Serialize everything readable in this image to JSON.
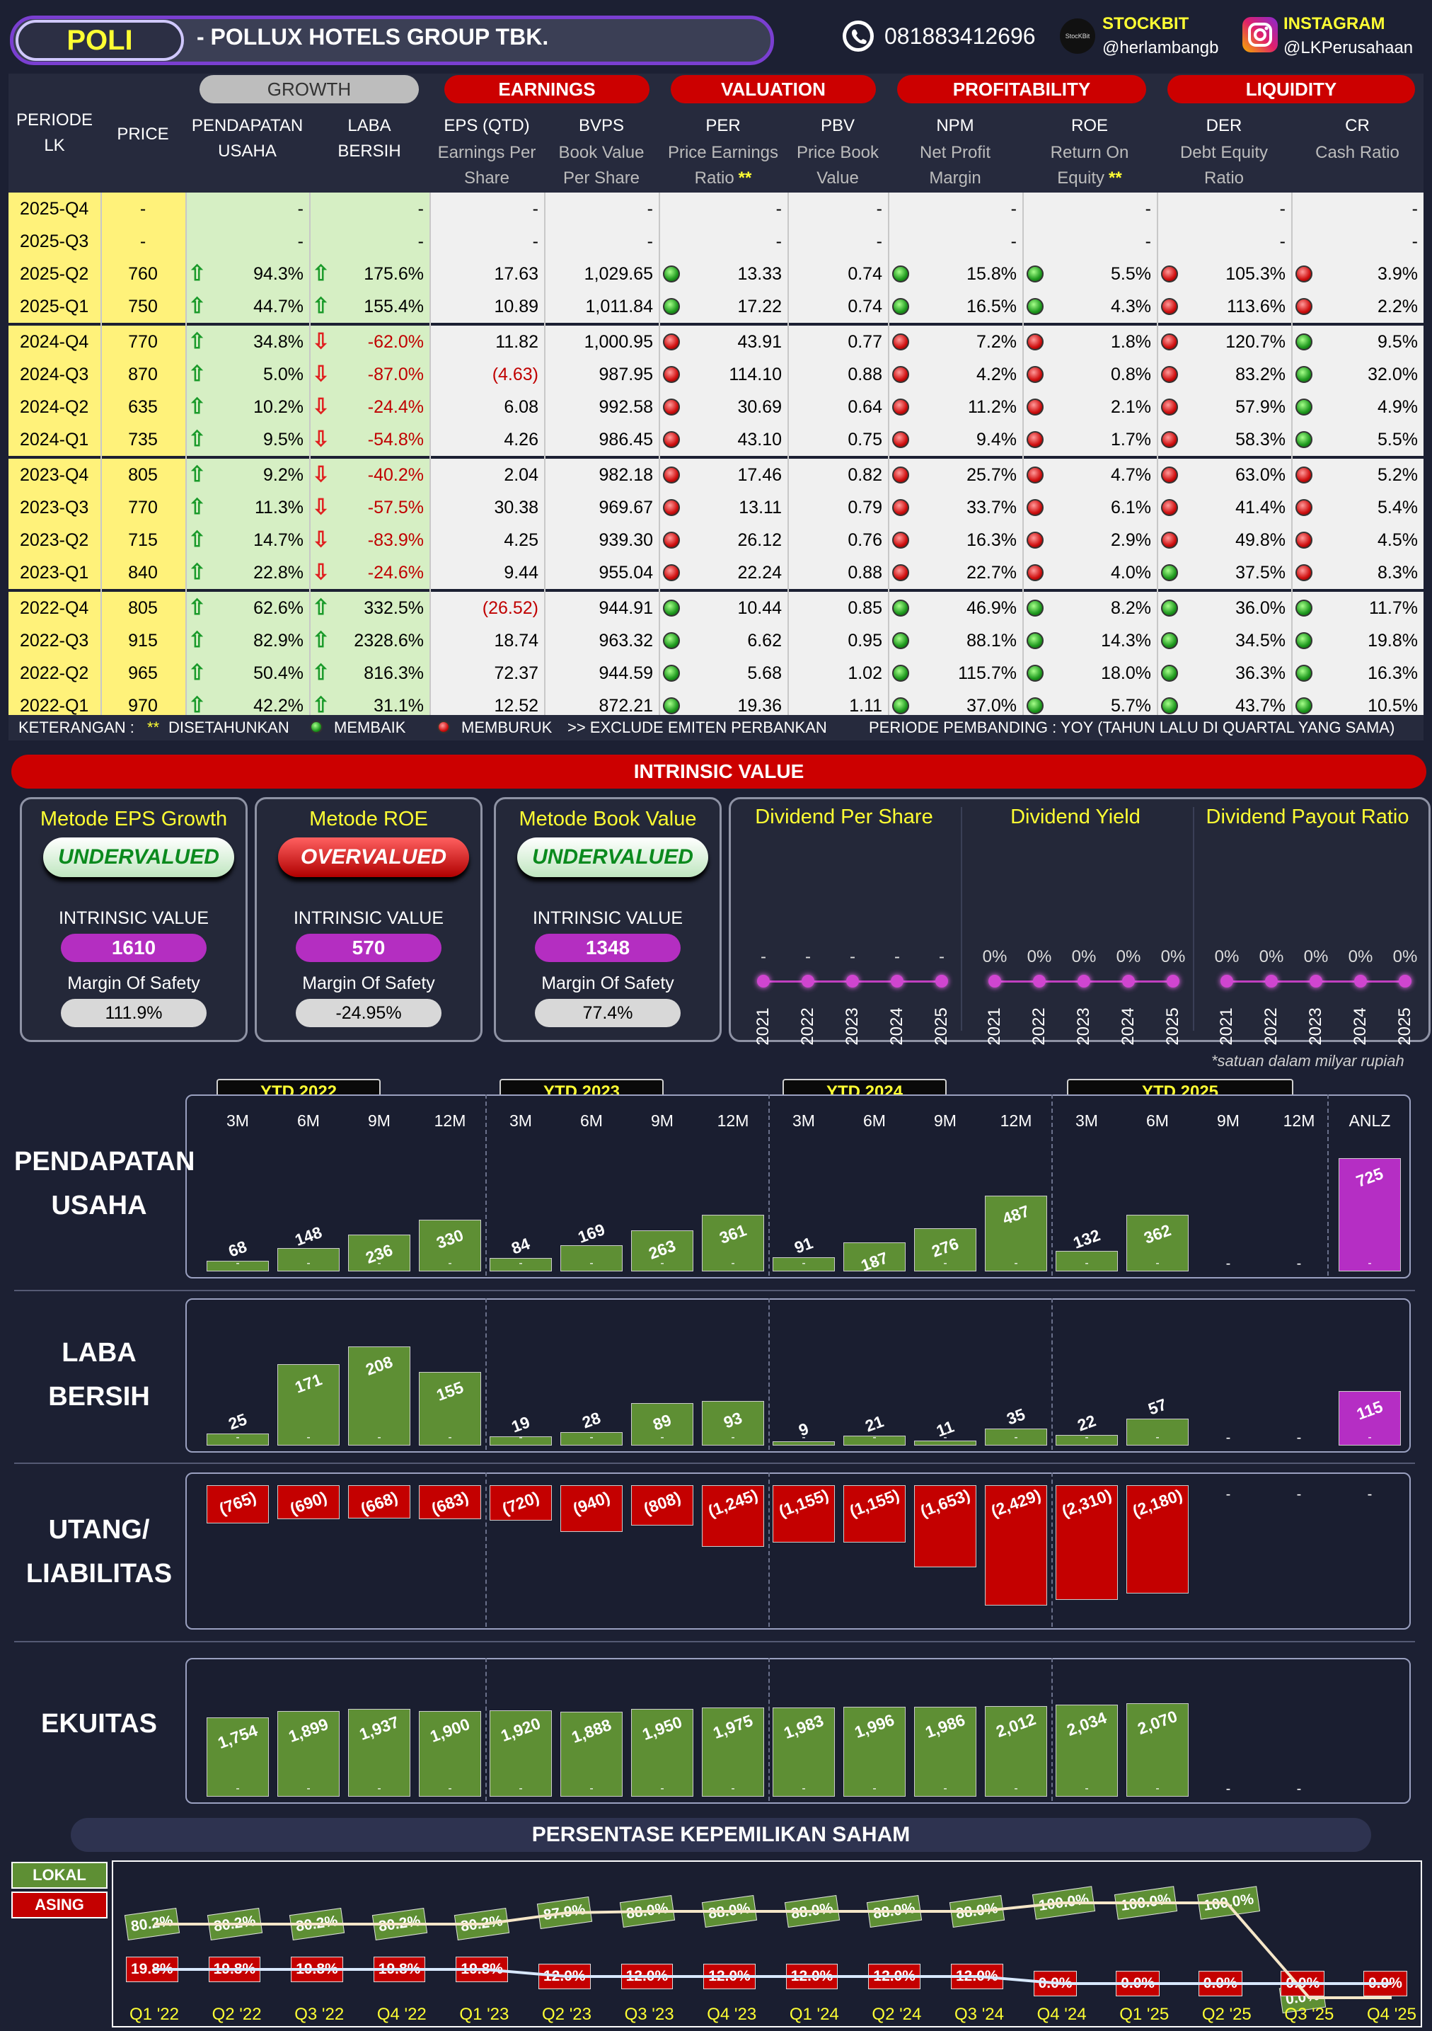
{
  "header": {
    "ticker": "POLI",
    "company": "-  POLLUX HOTELS GROUP TBK.",
    "phone": "081883412696",
    "stockbit_label": "STOCKBIT",
    "stockbit_handle": "@herlambangb",
    "stockbit_logo_text": "StocKBit",
    "instagram_label": "INSTAGRAM",
    "instagram_handle": "@LKPerusahaan"
  },
  "table": {
    "categories": {
      "growth": "GROWTH",
      "earnings": "EARNINGS",
      "valuation": "VALUATION",
      "profitability": "PROFITABILITY",
      "liquidity": "LIQUIDITY"
    },
    "col_periode": "PERIODE\nLK",
    "col_price": "PRICE",
    "col_revenue": "PENDAPATAN\nUSAHA",
    "col_netprofit": "LABA\nBERSIH",
    "col_eps": "EPS (QTD)",
    "col_eps_sub": "Earnings Per\nShare",
    "col_bvps": "BVPS",
    "col_bvps_sub": "Book Value\nPer Share",
    "col_per": "PER",
    "col_per_sub": "Price Earnings\nRatio",
    "col_pbv": "PBV",
    "col_pbv_sub": "Price Book\nValue",
    "col_npm": "NPM",
    "col_npm_sub": "Net Profit\nMargin",
    "col_roe": "ROE",
    "col_roe_sub": "Return On\nEquity",
    "col_der": "DER",
    "col_der_sub": "Debt Equity\nRatio",
    "col_cr": "CR",
    "col_cr_sub": "Cash Ratio",
    "star": "**",
    "rows": [
      {
        "p": "2025-Q4",
        "price": "-",
        "rev": "-",
        "rd": "",
        "np": "-",
        "nd": "",
        "eps": "-",
        "bvps": "-",
        "per": "-",
        "perd": "",
        "pbv": "-",
        "npm": "-",
        "npmd": "",
        "roe": "-",
        "roed": "",
        "der": "-",
        "derd": "",
        "cr": "-",
        "crd": ""
      },
      {
        "p": "2025-Q3",
        "price": "-",
        "rev": "-",
        "rd": "",
        "np": "-",
        "nd": "",
        "eps": "-",
        "bvps": "-",
        "per": "-",
        "perd": "",
        "pbv": "-",
        "npm": "-",
        "npmd": "",
        "roe": "-",
        "roed": "",
        "der": "-",
        "derd": "",
        "cr": "-",
        "crd": ""
      },
      {
        "p": "2025-Q2",
        "price": "760",
        "rev": "94.3%",
        "rd": "up",
        "np": "175.6%",
        "nd": "up",
        "eps": "17.63",
        "bvps": "1,029.65",
        "per": "13.33",
        "perd": "g",
        "pbv": "0.74",
        "npm": "15.8%",
        "npmd": "g",
        "roe": "5.5%",
        "roed": "g",
        "der": "105.3%",
        "derd": "r",
        "cr": "3.9%",
        "crd": "r"
      },
      {
        "p": "2025-Q1",
        "price": "750",
        "rev": "44.7%",
        "rd": "up",
        "np": "155.4%",
        "nd": "up",
        "eps": "10.89",
        "bvps": "1,011.84",
        "per": "17.22",
        "perd": "g",
        "pbv": "0.74",
        "npm": "16.5%",
        "npmd": "g",
        "roe": "4.3%",
        "roed": "g",
        "der": "113.6%",
        "derd": "r",
        "cr": "2.2%",
        "crd": "r"
      },
      {
        "p": "2024-Q4",
        "price": "770",
        "rev": "34.8%",
        "rd": "up",
        "np": "-62.0%",
        "nd": "dn",
        "eps": "11.82",
        "bvps": "1,000.95",
        "per": "43.91",
        "perd": "r",
        "pbv": "0.77",
        "npm": "7.2%",
        "npmd": "r",
        "roe": "1.8%",
        "roed": "r",
        "der": "120.7%",
        "derd": "r",
        "cr": "9.5%",
        "crd": "g"
      },
      {
        "p": "2024-Q3",
        "price": "870",
        "rev": "5.0%",
        "rd": "up",
        "np": "-87.0%",
        "nd": "dn",
        "eps": "(4.63)",
        "bvps": "987.95",
        "per": "114.10",
        "perd": "r",
        "pbv": "0.88",
        "npm": "4.2%",
        "npmd": "r",
        "roe": "0.8%",
        "roed": "r",
        "der": "83.2%",
        "derd": "r",
        "cr": "32.0%",
        "crd": "g"
      },
      {
        "p": "2024-Q2",
        "price": "635",
        "rev": "10.2%",
        "rd": "up",
        "np": "-24.4%",
        "nd": "dn",
        "eps": "6.08",
        "bvps": "992.58",
        "per": "30.69",
        "perd": "r",
        "pbv": "0.64",
        "npm": "11.2%",
        "npmd": "r",
        "roe": "2.1%",
        "roed": "r",
        "der": "57.9%",
        "derd": "r",
        "cr": "4.9%",
        "crd": "g"
      },
      {
        "p": "2024-Q1",
        "price": "735",
        "rev": "9.5%",
        "rd": "up",
        "np": "-54.8%",
        "nd": "dn",
        "eps": "4.26",
        "bvps": "986.45",
        "per": "43.10",
        "perd": "r",
        "pbv": "0.75",
        "npm": "9.4%",
        "npmd": "r",
        "roe": "1.7%",
        "roed": "r",
        "der": "58.3%",
        "derd": "r",
        "cr": "5.5%",
        "crd": "g"
      },
      {
        "p": "2023-Q4",
        "price": "805",
        "rev": "9.2%",
        "rd": "up",
        "np": "-40.2%",
        "nd": "dn",
        "eps": "2.04",
        "bvps": "982.18",
        "per": "17.46",
        "perd": "r",
        "pbv": "0.82",
        "npm": "25.7%",
        "npmd": "r",
        "roe": "4.7%",
        "roed": "r",
        "der": "63.0%",
        "derd": "r",
        "cr": "5.2%",
        "crd": "r"
      },
      {
        "p": "2023-Q3",
        "price": "770",
        "rev": "11.3%",
        "rd": "up",
        "np": "-57.5%",
        "nd": "dn",
        "eps": "30.38",
        "bvps": "969.67",
        "per": "13.11",
        "perd": "r",
        "pbv": "0.79",
        "npm": "33.7%",
        "npmd": "r",
        "roe": "6.1%",
        "roed": "r",
        "der": "41.4%",
        "derd": "r",
        "cr": "5.4%",
        "crd": "r"
      },
      {
        "p": "2023-Q2",
        "price": "715",
        "rev": "14.7%",
        "rd": "up",
        "np": "-83.9%",
        "nd": "dn",
        "eps": "4.25",
        "bvps": "939.30",
        "per": "26.12",
        "perd": "r",
        "pbv": "0.76",
        "npm": "16.3%",
        "npmd": "r",
        "roe": "2.9%",
        "roed": "r",
        "der": "49.8%",
        "derd": "r",
        "cr": "4.5%",
        "crd": "r"
      },
      {
        "p": "2023-Q1",
        "price": "840",
        "rev": "22.8%",
        "rd": "up",
        "np": "-24.6%",
        "nd": "dn",
        "eps": "9.44",
        "bvps": "955.04",
        "per": "22.24",
        "perd": "r",
        "pbv": "0.88",
        "npm": "22.7%",
        "npmd": "r",
        "roe": "4.0%",
        "roed": "r",
        "der": "37.5%",
        "derd": "g",
        "cr": "8.3%",
        "crd": "r"
      },
      {
        "p": "2022-Q4",
        "price": "805",
        "rev": "62.6%",
        "rd": "up",
        "np": "332.5%",
        "nd": "up",
        "eps": "(26.52)",
        "bvps": "944.91",
        "per": "10.44",
        "perd": "g",
        "pbv": "0.85",
        "npm": "46.9%",
        "npmd": "g",
        "roe": "8.2%",
        "roed": "g",
        "der": "36.0%",
        "derd": "g",
        "cr": "11.7%",
        "crd": "g"
      },
      {
        "p": "2022-Q3",
        "price": "915",
        "rev": "82.9%",
        "rd": "up",
        "np": "2328.6%",
        "nd": "up",
        "eps": "18.74",
        "bvps": "963.32",
        "per": "6.62",
        "perd": "g",
        "pbv": "0.95",
        "npm": "88.1%",
        "npmd": "g",
        "roe": "14.3%",
        "roed": "g",
        "der": "34.5%",
        "derd": "g",
        "cr": "19.8%",
        "crd": "g"
      },
      {
        "p": "2022-Q2",
        "price": "965",
        "rev": "50.4%",
        "rd": "up",
        "np": "816.3%",
        "nd": "up",
        "eps": "72.37",
        "bvps": "944.59",
        "per": "5.68",
        "perd": "g",
        "pbv": "1.02",
        "npm": "115.7%",
        "npmd": "g",
        "roe": "18.0%",
        "roed": "g",
        "der": "36.3%",
        "derd": "g",
        "cr": "16.3%",
        "crd": "g"
      },
      {
        "p": "2022-Q1",
        "price": "970",
        "rev": "42.2%",
        "rd": "up",
        "np": "31.1%",
        "nd": "up",
        "eps": "12.52",
        "bvps": "872.21",
        "per": "19.36",
        "perd": "g",
        "pbv": "1.11",
        "npm": "37.0%",
        "npmd": "g",
        "roe": "5.7%",
        "roed": "g",
        "der": "43.7%",
        "derd": "g",
        "cr": "10.5%",
        "crd": "g"
      }
    ],
    "legend": {
      "keterangan": "KETERANGAN :",
      "stars": "**",
      "disetahunkan": "DISETAHUNKAN",
      "membaik": "MEMBAIK",
      "memburuk": "MEMBURUK",
      "exclude": ">> EXCLUDE EMITEN PERBANKAN",
      "pembanding": "PERIODE PEMBANDING : YOY (TAHUN LALU DI QUARTAL YANG SAMA)"
    }
  },
  "intrinsic": {
    "title": "INTRINSIC VALUE",
    "iv_label": "INTRINSIC VALUE",
    "mos_label": "Margin Of Safety",
    "methods": [
      {
        "title": "Metode EPS Growth",
        "verdict": "UNDERVALUED",
        "value": "1610",
        "mos": "111.9%"
      },
      {
        "title": "Metode ROE",
        "verdict": "OVERVALUED",
        "value": "570",
        "mos": "-24.95%"
      },
      {
        "title": "Metode Book Value",
        "verdict": "UNDERVALUED",
        "value": "1348",
        "mos": "77.4%"
      }
    ],
    "dividend": {
      "panels": [
        {
          "title": "Dividend Per Share",
          "years": [
            "2021",
            "2022",
            "2023",
            "2024",
            "2025"
          ],
          "values": [
            "-",
            "-",
            "-",
            "-",
            "-"
          ]
        },
        {
          "title": "Dividend Yield",
          "years": [
            "2021",
            "2022",
            "2023",
            "2024",
            "2025"
          ],
          "values": [
            "0%",
            "0%",
            "0%",
            "0%",
            "0%"
          ]
        },
        {
          "title": "Dividend Payout Ratio",
          "years": [
            "2021",
            "2022",
            "2023",
            "2024",
            "2025"
          ],
          "values": [
            "0%",
            "0%",
            "0%",
            "0%",
            "0%"
          ]
        }
      ]
    }
  },
  "charts": {
    "unit_note": "*satuan dalam milyar rupiah",
    "ytd_labels": [
      "YTD 2022",
      "YTD 2023",
      "YTD 2024",
      "YTD 2025"
    ],
    "periods": [
      "3M",
      "6M",
      "9M",
      "12M",
      "3M",
      "6M",
      "9M",
      "12M",
      "3M",
      "6M",
      "9M",
      "12M",
      "3M",
      "6M",
      "9M",
      "12M",
      "ANLZ"
    ],
    "sections": {
      "pendapatan": "PENDAPATAN\nUSAHA",
      "laba": "LABA\nBERSIH",
      "utang": "UTANG/\nLIABILITAS",
      "ekuitas": "EKUITAS"
    },
    "colors": {
      "green": "#5e8f34",
      "red": "#c40000",
      "purple": "#b52ec4"
    }
  },
  "chart_data": [
    {
      "type": "bar",
      "title": "PENDAPATAN USAHA",
      "categories": [
        "3M '22",
        "6M '22",
        "9M '22",
        "12M '22",
        "3M '23",
        "6M '23",
        "9M '23",
        "12M '23",
        "3M '24",
        "6M '24",
        "9M '24",
        "12M '24",
        "3M '25",
        "6M '25",
        "9M '25",
        "12M '25",
        "ANLZ"
      ],
      "values": [
        68,
        148,
        236,
        330,
        84,
        169,
        263,
        361,
        91,
        187,
        276,
        487,
        132,
        362,
        null,
        null,
        725
      ]
    },
    {
      "type": "bar",
      "title": "LABA BERSIH",
      "categories": [
        "3M '22",
        "6M '22",
        "9M '22",
        "12M '22",
        "3M '23",
        "6M '23",
        "9M '23",
        "12M '23",
        "3M '24",
        "6M '24",
        "9M '24",
        "12M '24",
        "3M '25",
        "6M '25",
        "9M '25",
        "12M '25",
        "ANLZ"
      ],
      "values": [
        25,
        171,
        208,
        155,
        19,
        28,
        89,
        93,
        9,
        21,
        11,
        35,
        22,
        57,
        null,
        null,
        115
      ]
    },
    {
      "type": "bar",
      "title": "UTANG/ LIABILITAS",
      "categories": [
        "3M '22",
        "6M '22",
        "9M '22",
        "12M '22",
        "3M '23",
        "6M '23",
        "9M '23",
        "12M '23",
        "3M '24",
        "6M '24",
        "9M '24",
        "12M '24",
        "3M '25",
        "6M '25",
        "9M '25",
        "12M '25",
        "ANLZ"
      ],
      "values": [
        -765,
        -690,
        -668,
        -683,
        -720,
        -940,
        -808,
        -1245,
        -1155,
        -1155,
        -1653,
        -2429,
        -2310,
        -2180,
        null,
        null,
        null
      ],
      "labels": [
        "(765)",
        "(690)",
        "(668)",
        "(683)",
        "(720)",
        "(940)",
        "(808)",
        "(1,245)",
        "(1,155)",
        "(1,155)",
        "(1,653)",
        "(2,429)",
        "(2,310)",
        "(2,180)"
      ]
    },
    {
      "type": "bar",
      "title": "EKUITAS",
      "categories": [
        "3M '22",
        "6M '22",
        "9M '22",
        "12M '22",
        "3M '23",
        "6M '23",
        "9M '23",
        "12M '23",
        "3M '24",
        "6M '24",
        "9M '24",
        "12M '24",
        "3M '25",
        "6M '25",
        "9M '25",
        "12M '25"
      ],
      "values": [
        1754,
        1899,
        1937,
        1900,
        1920,
        1888,
        1950,
        1975,
        1983,
        1996,
        1986,
        2012,
        2034,
        2070,
        null,
        null
      ],
      "labels": [
        "1,754",
        "1,899",
        "1,937",
        "1,900",
        "1,920",
        "1,888",
        "1,950",
        "1,975",
        "1,983",
        "1,996",
        "1,986",
        "2,012",
        "2,034",
        "2,070"
      ]
    },
    {
      "type": "line",
      "title": "PERSENTASE KEPEMILIKAN SAHAM",
      "x": [
        "Q1 '22",
        "Q2 '22",
        "Q3 '22",
        "Q4 '22",
        "Q1 '23",
        "Q2 '23",
        "Q3 '23",
        "Q4 '23",
        "Q1 '24",
        "Q2 '24",
        "Q3 '24",
        "Q4 '24",
        "Q1 '25",
        "Q2 '25",
        "Q3 '25",
        "Q4 '25"
      ],
      "series": [
        {
          "name": "LOKAL",
          "values": [
            80.2,
            80.2,
            80.2,
            80.2,
            80.2,
            87.9,
            88.0,
            88.0,
            88.0,
            88.0,
            88.0,
            100.0,
            100.0,
            100.0,
            0.0,
            0.0
          ],
          "labels": [
            "80.2%",
            "80.2%",
            "80.2%",
            "80.2%",
            "80.2%",
            "87.9%",
            "88.0%",
            "88.0%",
            "88.0%",
            "88.0%",
            "88.0%",
            "100.0%",
            "100.0%",
            "100.0%",
            "0.0%",
            ""
          ]
        },
        {
          "name": "ASING",
          "values": [
            19.8,
            19.8,
            19.8,
            19.8,
            19.8,
            12.0,
            12.0,
            12.0,
            12.0,
            12.0,
            12.0,
            0.0,
            0.0,
            0.0,
            0.0,
            0.0
          ],
          "labels": [
            "19.8%",
            "19.8%",
            "19.8%",
            "19.8%",
            "19.8%",
            "12.0%",
            "12.0%",
            "12.0%",
            "12.0%",
            "12.0%",
            "12.0%",
            "0.0%",
            "0.0%",
            "0.0%",
            "0.0%",
            "0.0%"
          ]
        }
      ]
    }
  ]
}
